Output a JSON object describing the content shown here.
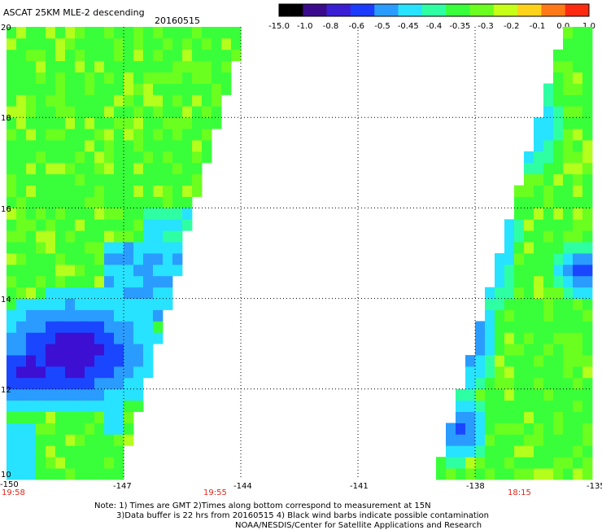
{
  "header": {
    "title": "ASCAT 25KM MLE-2 descending",
    "date": "20160515"
  },
  "colorbar": {
    "labels": [
      "-15.0",
      "-1.0",
      "-0.8",
      "-0.6",
      "-0.5",
      "-0.45",
      "-0.4",
      "-0.35",
      "-0.3",
      "-0.2",
      "-0.1",
      "0.0",
      "1.0"
    ],
    "colors": [
      "#000000",
      "#3a0a8c",
      "#3a1ed4",
      "#1b3cff",
      "#2a9cff",
      "#27e3ff",
      "#2effa3",
      "#38ff3a",
      "#6bff20",
      "#c6ff18",
      "#ffd21a",
      "#ff7a16",
      "#ff2a10"
    ]
  },
  "map": {
    "lon_min": -150,
    "lon_max": -135,
    "lat_min": 10,
    "lat_max": 20,
    "lat_ticks": [
      "20",
      "18",
      "16",
      "14",
      "12",
      "10"
    ],
    "lon_ticks": [
      "-150",
      "-147",
      "-144",
      "-141",
      "-138",
      "-135"
    ],
    "time_labels": [
      "19:58",
      "19:55",
      "18:15"
    ]
  },
  "notes": [
    "Note: 1) Times are GMT 2)Times along bottom correspond to measurement at 15N",
    "3)Data buffer is 22 hrs from 20160515 4) Black wind barbs indicate possible contamination",
    "NOAA/NESDIS/Center for Satellite Applications and Research"
  ]
}
